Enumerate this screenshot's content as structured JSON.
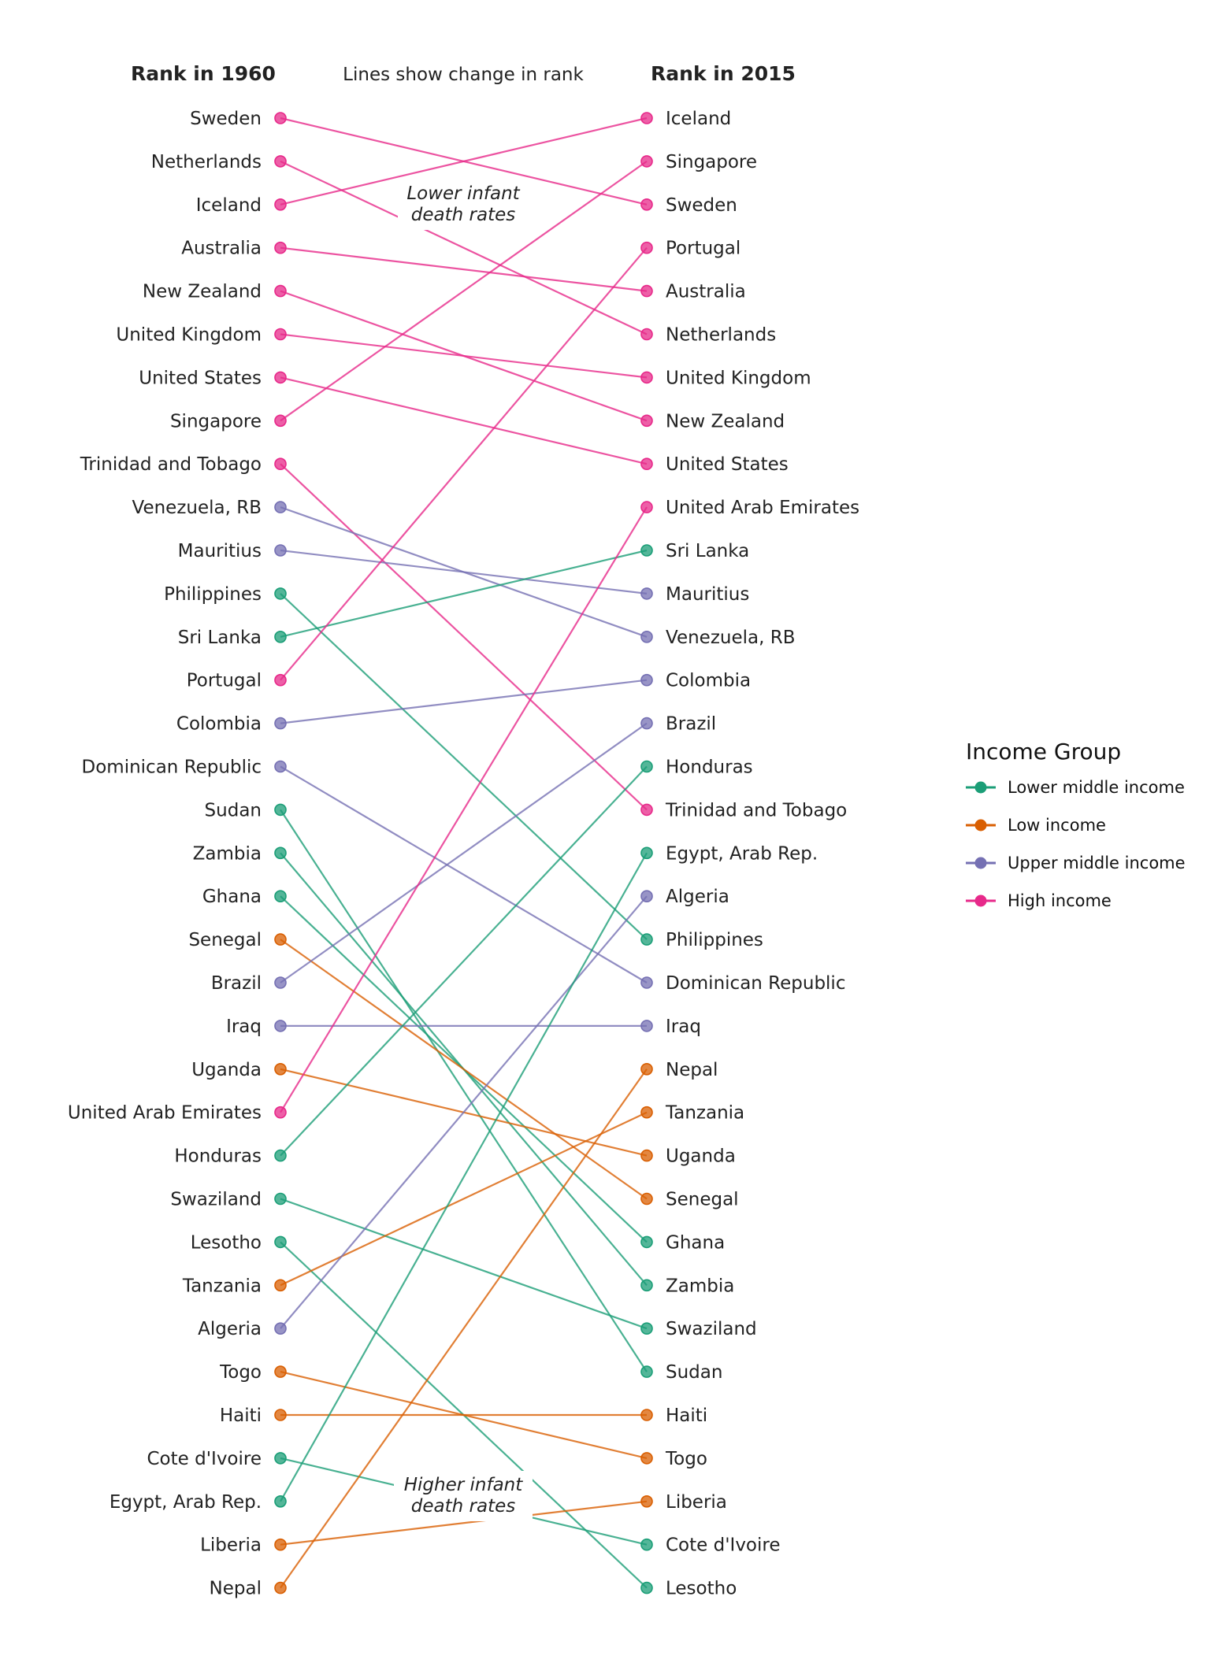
{
  "chart_data": {
    "type": "slope",
    "left_header": "Rank in 1960",
    "right_header": "Rank in 2015",
    "subtitle": "Lines show change in rank",
    "annotation_top": [
      "Lower infant",
      "death rates"
    ],
    "annotation_bottom": [
      "Higher infant",
      "death rates"
    ],
    "legend": {
      "title": "Income Group",
      "position": "right",
      "items": [
        {
          "name": "Lower middle income",
          "color": "#1b9e77"
        },
        {
          "name": "Low income",
          "color": "#d95f02"
        },
        {
          "name": "Upper middle income",
          "color": "#7570b3"
        },
        {
          "name": "High income",
          "color": "#e7298a"
        }
      ]
    },
    "countries": [
      {
        "name": "Sweden",
        "group": "High income",
        "rank_1960": 1,
        "rank_2015": 3
      },
      {
        "name": "Netherlands",
        "group": "High income",
        "rank_1960": 2,
        "rank_2015": 6
      },
      {
        "name": "Iceland",
        "group": "High income",
        "rank_1960": 3,
        "rank_2015": 1
      },
      {
        "name": "Australia",
        "group": "High income",
        "rank_1960": 4,
        "rank_2015": 5
      },
      {
        "name": "New Zealand",
        "group": "High income",
        "rank_1960": 5,
        "rank_2015": 8
      },
      {
        "name": "United Kingdom",
        "group": "High income",
        "rank_1960": 6,
        "rank_2015": 7
      },
      {
        "name": "United States",
        "group": "High income",
        "rank_1960": 7,
        "rank_2015": 9
      },
      {
        "name": "Singapore",
        "group": "High income",
        "rank_1960": 8,
        "rank_2015": 2
      },
      {
        "name": "Trinidad and Tobago",
        "group": "High income",
        "rank_1960": 9,
        "rank_2015": 17
      },
      {
        "name": "Venezuela, RB",
        "group": "Upper middle income",
        "rank_1960": 10,
        "rank_2015": 13
      },
      {
        "name": "Mauritius",
        "group": "Upper middle income",
        "rank_1960": 11,
        "rank_2015": 12
      },
      {
        "name": "Philippines",
        "group": "Lower middle income",
        "rank_1960": 12,
        "rank_2015": 20
      },
      {
        "name": "Sri Lanka",
        "group": "Lower middle income",
        "rank_1960": 13,
        "rank_2015": 11
      },
      {
        "name": "Portugal",
        "group": "High income",
        "rank_1960": 14,
        "rank_2015": 4
      },
      {
        "name": "Colombia",
        "group": "Upper middle income",
        "rank_1960": 15,
        "rank_2015": 14
      },
      {
        "name": "Dominican Republic",
        "group": "Upper middle income",
        "rank_1960": 16,
        "rank_2015": 21
      },
      {
        "name": "Sudan",
        "group": "Lower middle income",
        "rank_1960": 17,
        "rank_2015": 30
      },
      {
        "name": "Zambia",
        "group": "Lower middle income",
        "rank_1960": 18,
        "rank_2015": 28
      },
      {
        "name": "Ghana",
        "group": "Lower middle income",
        "rank_1960": 19,
        "rank_2015": 27
      },
      {
        "name": "Senegal",
        "group": "Low income",
        "rank_1960": 20,
        "rank_2015": 26
      },
      {
        "name": "Brazil",
        "group": "Upper middle income",
        "rank_1960": 21,
        "rank_2015": 15
      },
      {
        "name": "Iraq",
        "group": "Upper middle income",
        "rank_1960": 22,
        "rank_2015": 22
      },
      {
        "name": "Uganda",
        "group": "Low income",
        "rank_1960": 23,
        "rank_2015": 25
      },
      {
        "name": "United Arab Emirates",
        "group": "High income",
        "rank_1960": 24,
        "rank_2015": 10
      },
      {
        "name": "Honduras",
        "group": "Lower middle income",
        "rank_1960": 25,
        "rank_2015": 16
      },
      {
        "name": "Swaziland",
        "group": "Lower middle income",
        "rank_1960": 26,
        "rank_2015": 29
      },
      {
        "name": "Lesotho",
        "group": "Lower middle income",
        "rank_1960": 27,
        "rank_2015": 35
      },
      {
        "name": "Tanzania",
        "group": "Low income",
        "rank_1960": 28,
        "rank_2015": 24
      },
      {
        "name": "Algeria",
        "group": "Upper middle income",
        "rank_1960": 29,
        "rank_2015": 19
      },
      {
        "name": "Togo",
        "group": "Low income",
        "rank_1960": 30,
        "rank_2015": 32
      },
      {
        "name": "Haiti",
        "group": "Low income",
        "rank_1960": 31,
        "rank_2015": 31
      },
      {
        "name": "Cote d'Ivoire",
        "group": "Lower middle income",
        "rank_1960": 32,
        "rank_2015": 34
      },
      {
        "name": "Egypt, Arab Rep.",
        "group": "Lower middle income",
        "rank_1960": 33,
        "rank_2015": 18
      },
      {
        "name": "Liberia",
        "group": "Low income",
        "rank_1960": 34,
        "rank_2015": 33
      },
      {
        "name": "Nepal",
        "group": "Low income",
        "rank_1960": 35,
        "rank_2015": 23
      }
    ]
  }
}
